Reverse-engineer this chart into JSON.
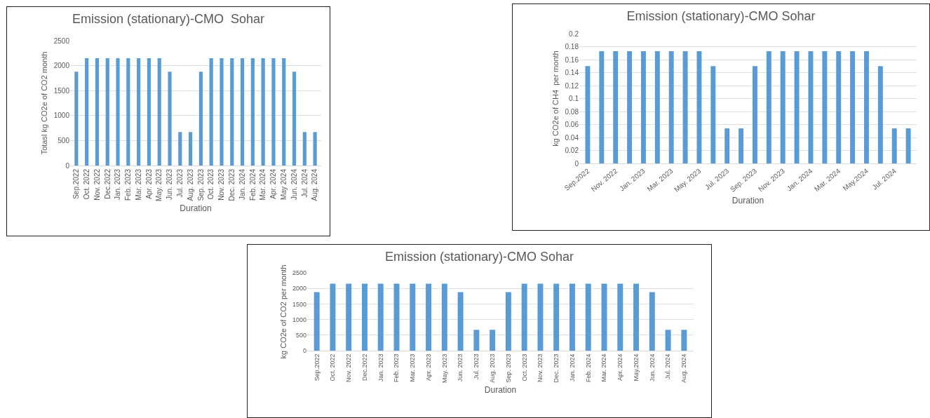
{
  "chart_data": [
    {
      "type": "bar",
      "title": "Emission (stationary)-CMO  Sohar",
      "xlabel": "Duration",
      "ylabel": "Totasl kg CO2e of CO2 month",
      "categories": [
        "Sep.2022",
        "Oct. 2022",
        "Nov. 2022",
        "Dec.2022",
        "Jan. 2023",
        "Feb. 2023",
        "Mar. 2023",
        "Apr. 2023",
        "May. 2023",
        "Jun. 2023",
        "Jul. 2023",
        "Aug. 2023",
        "Sep. 2023",
        "Oct. 2023",
        "Nov. 2023",
        "Dec. 2023",
        "Jan. 2024",
        "Feb. 2024",
        "Mar. 2024",
        "Apr. 2024",
        "May 2024",
        "Jun. 2024",
        "Jul. 2024",
        "Aug. 2024"
      ],
      "values": [
        1880,
        2150,
        2150,
        2150,
        2150,
        2150,
        2150,
        2150,
        2150,
        1880,
        670,
        670,
        1880,
        2150,
        2150,
        2150,
        2150,
        2150,
        2150,
        2150,
        2150,
        1880,
        670,
        670
      ],
      "color": "#5b9bd5",
      "ylim": [
        0,
        2500
      ],
      "yticks": [
        0,
        500,
        1000,
        1500,
        2000,
        2500
      ],
      "grid": "y"
    },
    {
      "type": "bar",
      "title": "Emission (stationary)-CMO Sohar",
      "xlabel": "Duration",
      "ylabel": "kg CO2e of CH4  per month",
      "categories": [
        "Sep.2022",
        null,
        "Nov. 2022",
        null,
        "Jan. 2023",
        null,
        "Mar. 2023",
        null,
        "May. 2023",
        null,
        "Jul. 2023",
        null,
        "Sep. 2023",
        null,
        "Nov. 2023",
        null,
        "Jan. 2024",
        null,
        "Mar. 2024",
        null,
        "May.2024",
        null,
        "Jul. 2024",
        null
      ],
      "values": [
        0.15,
        0.173,
        0.173,
        0.173,
        0.173,
        0.173,
        0.173,
        0.173,
        0.173,
        0.15,
        0.054,
        0.054,
        0.15,
        0.173,
        0.173,
        0.173,
        0.173,
        0.173,
        0.173,
        0.173,
        0.173,
        0.15,
        0.054,
        0.054
      ],
      "color": "#5b9bd5",
      "ylim": [
        0,
        0.2
      ],
      "yticks": [
        0,
        0.02,
        0.04,
        0.06,
        0.08,
        0.1,
        0.12,
        0.14,
        0.16,
        0.18,
        0.2
      ],
      "grid": "y"
    },
    {
      "type": "bar",
      "title": "Emission (stationary)-CMO Sohar",
      "xlabel": "Duration",
      "ylabel": "kg CO2e of CO2 per month",
      "categories": [
        "Sep.2022",
        "Oct. 2022",
        "Nov. 2022",
        "Dec.2022",
        "Jan. 2023",
        "Feb. 2023",
        "Mar. 2023",
        "Apr. 2023",
        "May. 2023",
        "Jun. 2023",
        "Jul. 2023",
        "Aug. 2023",
        "Sep. 2023",
        "Oct. 2023",
        "Nov. 2023",
        "Dec. 2023",
        "Jan. 2024",
        "Feb. 2024",
        "Mar. 2024",
        "Apr. 2024",
        "May.2024",
        "Jun. 2024",
        "Jul. 2024",
        "Aug. 2024"
      ],
      "values": [
        1880,
        2150,
        2150,
        2150,
        2150,
        2150,
        2150,
        2150,
        2150,
        1880,
        670,
        670,
        1880,
        2150,
        2150,
        2150,
        2150,
        2150,
        2150,
        2150,
        2150,
        1880,
        670,
        670
      ],
      "color": "#5b9bd5",
      "ylim": [
        0,
        2500
      ],
      "yticks": [
        0,
        500,
        1000,
        1500,
        2000,
        2500
      ],
      "grid": "y"
    }
  ]
}
